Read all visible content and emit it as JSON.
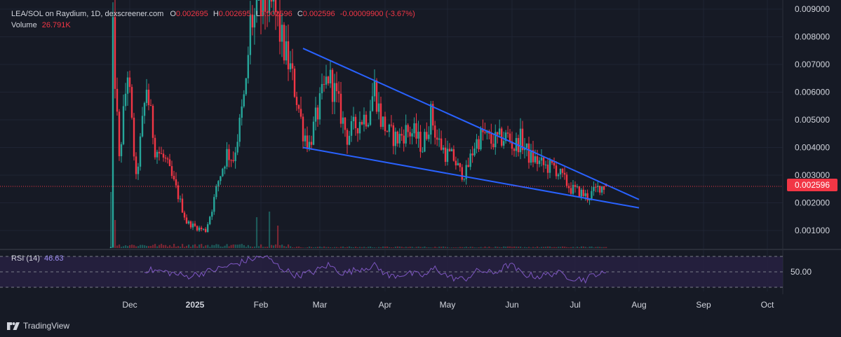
{
  "legend": {
    "symbol": "LEA/SOL on Raydium, 1D, dexscreener.com",
    "o_label": "O",
    "o_value": "0.002695",
    "h_label": "H",
    "h_value": "0.002695",
    "l_label": "L",
    "l_value": "0.002596",
    "c_label": "C",
    "c_value": "0.002596",
    "change": "-0.00009900 (-3.67%)",
    "volume_label": "Volume",
    "volume_value": "26.791K"
  },
  "rsi": {
    "label": "RSI (14)",
    "value": "46.63",
    "axis_label": "50.00"
  },
  "current_price": "0.002596",
  "branding": "TradingView",
  "colors": {
    "background": "#161a25",
    "up": "#26a69a",
    "down": "#f23645",
    "trendline": "#2962ff",
    "rsi_line": "#7e57c2",
    "rsi_band": "#2a2245"
  },
  "chart_data": {
    "type": "candlestick",
    "x_ticks": [
      "Dec",
      "2025",
      "Feb",
      "Mar",
      "Apr",
      "May",
      "Jun",
      "Jul",
      "Aug",
      "Sep",
      "Oct"
    ],
    "y_ticks": [
      "0.009000",
      "0.008000",
      "0.007000",
      "0.006000",
      "0.005000",
      "0.004000",
      "0.003000",
      "0.002000",
      "0.001000"
    ],
    "ylim": [
      0,
      0.0092
    ],
    "last_close": 0.002596,
    "trendlines": [
      {
        "name": "upper",
        "from": [
          "2025-02-21",
          0.00758
        ],
        "to": [
          "2025-08-01",
          0.00212
        ]
      },
      {
        "name": "lower",
        "from": [
          "2025-02-21",
          0.004
        ],
        "to": [
          "2025-08-01",
          0.00182
        ]
      }
    ],
    "price_path": [
      [
        "2024-11-22",
        0.0003
      ],
      [
        "2024-11-23",
        0.008
      ],
      [
        "2024-11-26",
        0.0035
      ],
      [
        "2024-11-30",
        0.0068
      ],
      [
        "2024-12-04",
        0.0028
      ],
      [
        "2024-12-09",
        0.0062
      ],
      [
        "2024-12-13",
        0.004
      ],
      [
        "2024-12-18",
        0.0035
      ],
      [
        "2024-12-23",
        0.0025
      ],
      [
        "2024-12-28",
        0.0013
      ],
      [
        "2025-01-02",
        0.0011
      ],
      [
        "2025-01-06",
        0.001
      ],
      [
        "2025-01-09",
        0.0018
      ],
      [
        "2025-01-12",
        0.0028
      ],
      [
        "2025-01-16",
        0.0038
      ],
      [
        "2025-01-19",
        0.0036
      ],
      [
        "2025-01-22",
        0.0048
      ],
      [
        "2025-01-25",
        0.0062
      ],
      [
        "2025-01-27",
        0.0085
      ],
      [
        "2025-01-31",
        0.0088
      ],
      [
        "2025-02-04",
        0.0092
      ],
      [
        "2025-02-08",
        0.0088
      ],
      [
        "2025-02-11",
        0.0078
      ],
      [
        "2025-02-15",
        0.0068
      ],
      [
        "2025-02-18",
        0.0058
      ],
      [
        "2025-02-21",
        0.0046
      ],
      [
        "2025-02-24",
        0.0041
      ],
      [
        "2025-02-27",
        0.005
      ],
      [
        "2025-03-02",
        0.0058
      ],
      [
        "2025-03-05",
        0.0066
      ],
      [
        "2025-03-08",
        0.006
      ],
      [
        "2025-03-11",
        0.0052
      ],
      [
        "2025-03-14",
        0.0044
      ],
      [
        "2025-03-17",
        0.0047
      ],
      [
        "2025-03-20",
        0.005
      ],
      [
        "2025-03-24",
        0.0052
      ],
      [
        "2025-03-27",
        0.0062
      ],
      [
        "2025-03-30",
        0.005
      ],
      [
        "2025-04-03",
        0.0045
      ],
      [
        "2025-04-07",
        0.0043
      ],
      [
        "2025-04-11",
        0.0046
      ],
      [
        "2025-04-15",
        0.0045
      ],
      [
        "2025-04-19",
        0.004
      ],
      [
        "2025-04-23",
        0.0052
      ],
      [
        "2025-04-26",
        0.0043
      ],
      [
        "2025-04-30",
        0.0038
      ],
      [
        "2025-05-04",
        0.0036
      ],
      [
        "2025-05-07",
        0.0031
      ],
      [
        "2025-05-10",
        0.0031
      ],
      [
        "2025-05-14",
        0.0041
      ],
      [
        "2025-05-18",
        0.0045
      ],
      [
        "2025-05-22",
        0.0042
      ],
      [
        "2025-05-26",
        0.0043
      ],
      [
        "2025-05-30",
        0.0044
      ],
      [
        "2025-06-02",
        0.004
      ],
      [
        "2025-06-05",
        0.0043
      ],
      [
        "2025-06-09",
        0.0037
      ],
      [
        "2025-06-13",
        0.0035
      ],
      [
        "2025-06-17",
        0.0033
      ],
      [
        "2025-06-21",
        0.0033
      ],
      [
        "2025-06-25",
        0.0029
      ],
      [
        "2025-06-29",
        0.0025
      ],
      [
        "2025-07-03",
        0.0024
      ],
      [
        "2025-07-07",
        0.0022
      ],
      [
        "2025-07-10",
        0.0024
      ],
      [
        "2025-07-13",
        0.0026
      ],
      [
        "2025-07-16",
        0.002596
      ]
    ],
    "volume_spikes": [
      [
        "2024-11-22",
        1.0
      ],
      [
        "2024-11-24",
        0.5
      ],
      [
        "2025-01-30",
        0.55
      ],
      [
        "2025-02-05",
        0.65
      ],
      [
        "2025-02-09",
        0.4
      ]
    ],
    "rsi_path": [
      [
        "2024-12-08",
        53
      ],
      [
        "2024-12-18",
        50
      ],
      [
        "2024-12-28",
        44
      ],
      [
        "2025-01-05",
        49
      ],
      [
        "2025-01-12",
        54
      ],
      [
        "2025-01-20",
        60
      ],
      [
        "2025-01-28",
        67
      ],
      [
        "2025-02-03",
        70
      ],
      [
        "2025-02-10",
        56
      ],
      [
        "2025-02-18",
        45
      ],
      [
        "2025-02-26",
        50
      ],
      [
        "2025-03-05",
        59
      ],
      [
        "2025-03-12",
        48
      ],
      [
        "2025-03-20",
        54
      ],
      [
        "2025-03-27",
        58
      ],
      [
        "2025-04-03",
        44
      ],
      [
        "2025-04-12",
        48
      ],
      [
        "2025-04-20",
        45
      ],
      [
        "2025-04-25",
        55
      ],
      [
        "2025-05-02",
        43
      ],
      [
        "2025-05-09",
        40
      ],
      [
        "2025-05-16",
        52
      ],
      [
        "2025-05-23",
        48
      ],
      [
        "2025-05-31",
        60
      ],
      [
        "2025-06-06",
        47
      ],
      [
        "2025-06-14",
        44
      ],
      [
        "2025-06-22",
        49
      ],
      [
        "2025-06-30",
        42
      ],
      [
        "2025-07-06",
        40
      ],
      [
        "2025-07-11",
        48
      ],
      [
        "2025-07-16",
        46.63
      ]
    ]
  }
}
